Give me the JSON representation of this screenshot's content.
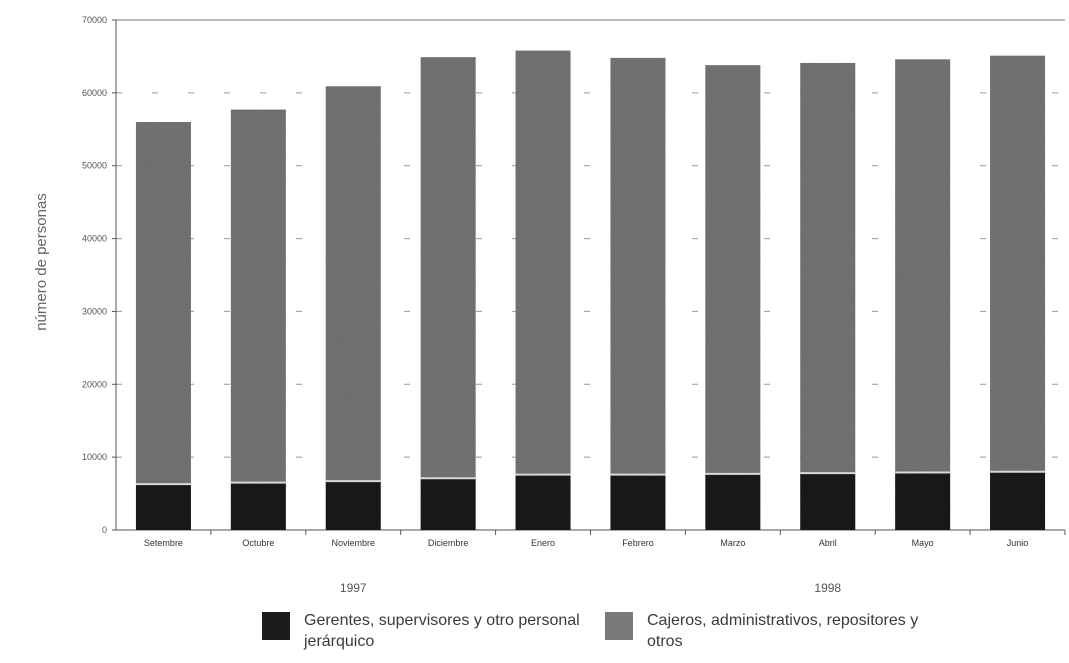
{
  "chart_data": {
    "type": "bar",
    "stacked": true,
    "title": "",
    "ylabel": "número de personas",
    "xlabel": "",
    "ylim": [
      0,
      70000
    ],
    "yticks": [
      "0",
      "10000",
      "20000",
      "30000",
      "40000",
      "50000",
      "60000",
      "70000"
    ],
    "categories": [
      "Setembre",
      "Octubre",
      "Noviembre",
      "Diciembre",
      "Enero",
      "Febrero",
      "Marzo",
      "Abril",
      "Mayo",
      "Junio"
    ],
    "year_labels": [
      {
        "label": "1997",
        "category_span": [
          0,
          4
        ]
      },
      {
        "label": "1998",
        "category_span": [
          5,
          9
        ]
      }
    ],
    "series": [
      {
        "name": "Gerentes, supervisores y otro personal jerárquico",
        "color": "#1c1c1c",
        "values": [
          6300,
          6500,
          6700,
          7100,
          7600,
          7600,
          7700,
          7800,
          7900,
          8000
        ]
      },
      {
        "name": "Cajeros, administrativos, repositores y otros",
        "color": "#7a7a7a",
        "values": [
          49700,
          51200,
          54200,
          57800,
          58200,
          57200,
          56100,
          56300,
          56700,
          57100
        ]
      }
    ],
    "grid": "dashed-horizontal",
    "legend_position": "bottom"
  }
}
